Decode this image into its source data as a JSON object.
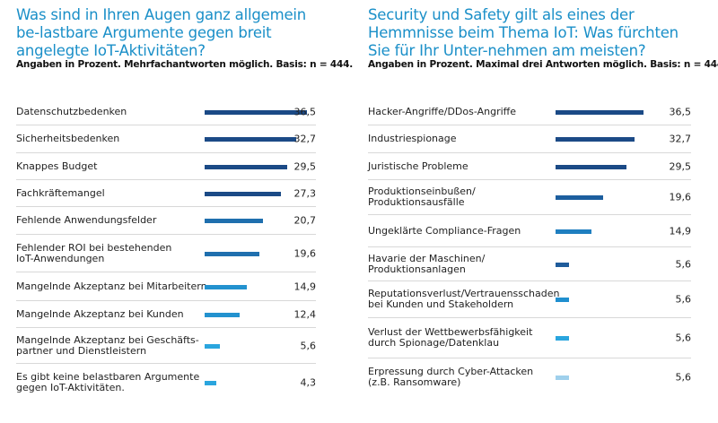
{
  "chart_data": [
    {
      "type": "bar",
      "orientation": "horizontal",
      "title": "Was sind in Ihren Augen ganz allgemein be-lastbare Argumente gegen breit angelegte IoT-Aktivitäten?",
      "subtitle": "Angaben in Prozent. Mehrfachantworten möglich. Basis: n = 444.",
      "categories": [
        "Datenschutzbedenken",
        "Sicherheitsbedenken",
        "Knappes Budget",
        "Fachkräftemangel",
        "Fehlende Anwendungsfelder",
        "Fehlender ROI bei bestehenden\nIoT-Anwendungen",
        "Mangelnde Akzeptanz bei Mitarbeitern",
        "Mangelnde Akzeptanz bei Kunden",
        "Mangelnde Akzeptanz bei Geschäfts-\npartner und Dienstleistern",
        "Es gibt keine belastbaren Argumente\ngegen IoT-Aktivitäten."
      ],
      "values": [
        36.5,
        32.7,
        29.5,
        27.3,
        20.7,
        19.6,
        14.9,
        12.4,
        5.6,
        4.3
      ],
      "value_labels": [
        "36,5",
        "32,7",
        "29,5",
        "27,3",
        "20,7",
        "19,6",
        "14,9",
        "12,4",
        "5,6",
        "4,3"
      ],
      "colors": [
        "#1b4a86",
        "#1b4a86",
        "#1b4a86",
        "#1b4a86",
        "#1f6fae",
        "#1f6fae",
        "#2392cf",
        "#2392cf",
        "#2aa5de",
        "#2aa5de"
      ],
      "xlim": [
        0,
        36.5
      ]
    },
    {
      "type": "bar",
      "orientation": "horizontal",
      "title": "Security und Safety gilt als eines der Hemmnisse beim Thema IoT: Was fürchten Sie für Ihr Unter-nehmen am meisten?",
      "subtitle": "Angaben in Prozent. Maximal drei Antworten möglich. Basis: n = 444.",
      "categories": [
        "Hacker-Angriffe/DDos-Angriffe",
        "Industriespionage",
        "Juristische Probleme",
        "Produktionseinbußen/\nProduktionsausfälle",
        "Ungeklärte Compliance-Fragen",
        "Havarie der Maschinen/\nProduktionsanlagen",
        "Reputationsverlust/Vertrauensschaden\nbei Kunden und Stakeholdern",
        "Verlust der Wettbewerbsfähigkeit\ndurch Spionage/Datenklau",
        "Erpressung durch Cyber-Attacken\n(z.B. Ransomware)"
      ],
      "values": [
        36.5,
        32.7,
        29.5,
        19.6,
        14.9,
        5.6,
        5.6,
        5.6,
        5.6
      ],
      "value_labels": [
        "36,5",
        "32,7",
        "29,5",
        "19,6",
        "14,9",
        "5,6",
        "5,6",
        "5,6",
        "5,6"
      ],
      "colors": [
        "#1b4a86",
        "#1b4a86",
        "#1b4a86",
        "#1c5e9e",
        "#1f7fc0",
        "#1f5c9b",
        "#1f8fcf",
        "#2aa5de",
        "#9fd0ec"
      ],
      "xlim": [
        0,
        36.5
      ]
    }
  ]
}
